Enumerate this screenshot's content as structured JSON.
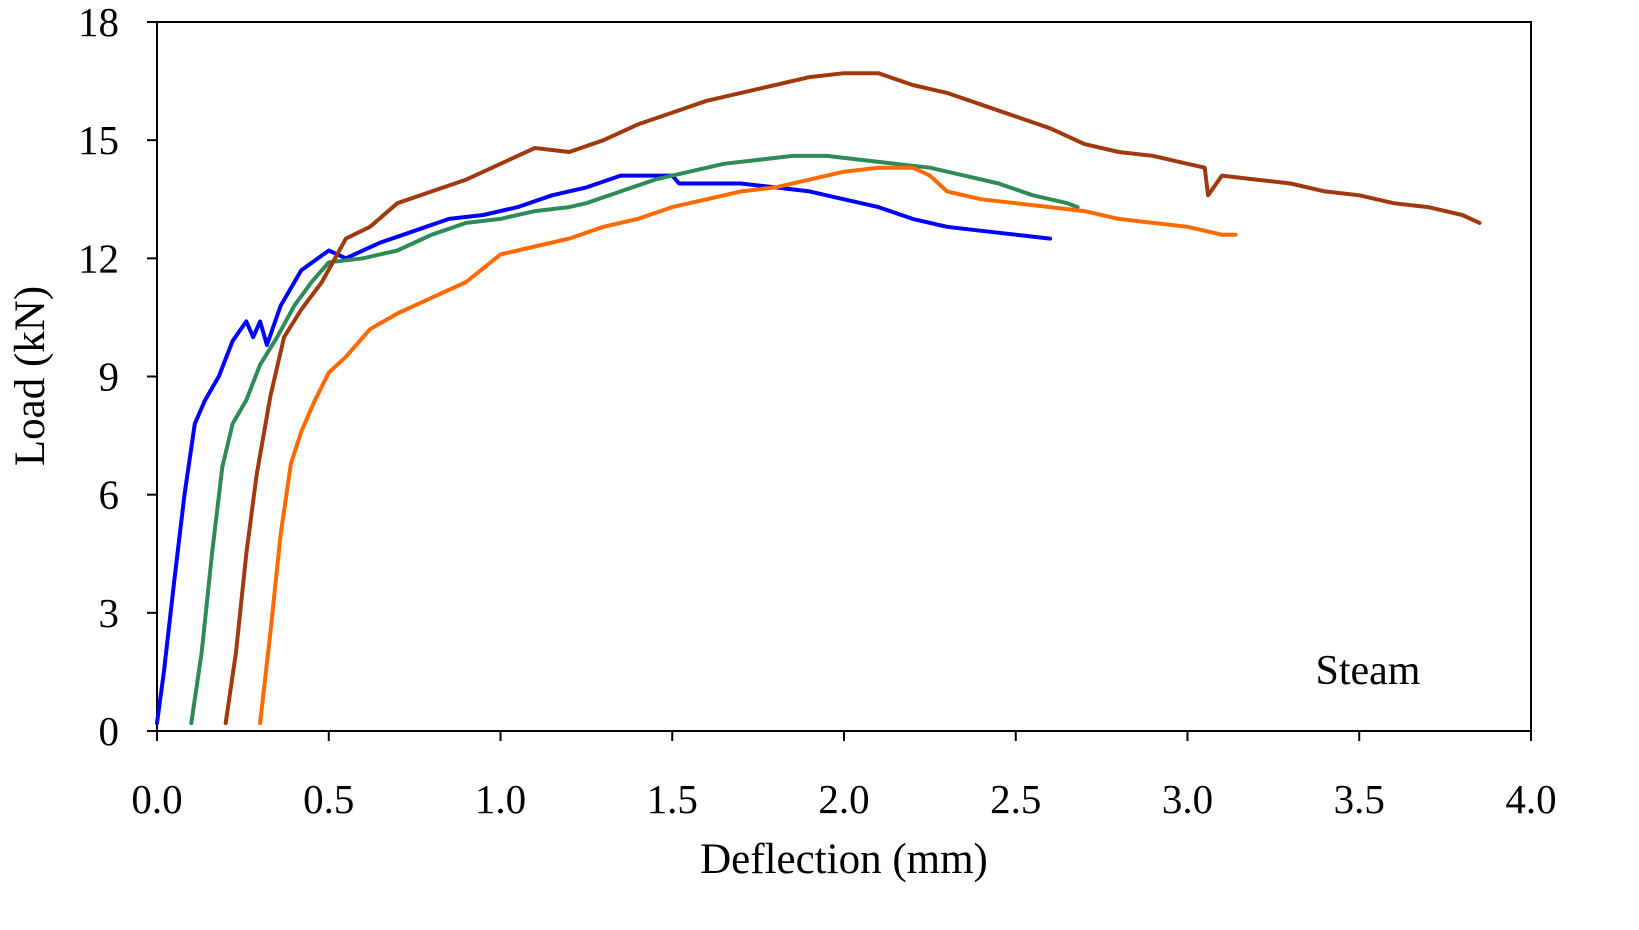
{
  "chart_data": {
    "type": "line",
    "title": "",
    "xlabel": "Deflection (mm)",
    "ylabel": "Load (kN)",
    "xlim": [
      0.0,
      4.0
    ],
    "ylim": [
      0,
      18
    ],
    "xticks": [
      "0.0",
      "0.5",
      "1.0",
      "1.5",
      "2.0",
      "2.5",
      "3.0",
      "3.5",
      "4.0"
    ],
    "yticks": [
      "0",
      "3",
      "6",
      "9",
      "12",
      "15",
      "18"
    ],
    "grid": false,
    "legend": "none",
    "annotation": "Steam",
    "series": [
      {
        "color": "#0000ff",
        "x": [
          0.0,
          0.02,
          0.05,
          0.08,
          0.11,
          0.14,
          0.18,
          0.22,
          0.26,
          0.28,
          0.3,
          0.32,
          0.36,
          0.42,
          0.5,
          0.55,
          0.65,
          0.75,
          0.85,
          0.95,
          1.05,
          1.15,
          1.25,
          1.35,
          1.45,
          1.5,
          1.52,
          1.6,
          1.7,
          1.8,
          1.9,
          2.0,
          2.1,
          2.2,
          2.3,
          2.4,
          2.5,
          2.6
        ],
        "y": [
          0.2,
          1.5,
          3.8,
          6.0,
          7.8,
          8.4,
          9.0,
          9.9,
          10.4,
          10.0,
          10.4,
          9.8,
          10.8,
          11.7,
          12.2,
          12.0,
          12.4,
          12.7,
          13.0,
          13.1,
          13.3,
          13.6,
          13.8,
          14.1,
          14.1,
          14.1,
          13.9,
          13.9,
          13.9,
          13.8,
          13.7,
          13.5,
          13.3,
          13.0,
          12.8,
          12.7,
          12.6,
          12.5
        ]
      },
      {
        "color": "#2e8b57",
        "x": [
          0.1,
          0.13,
          0.16,
          0.19,
          0.22,
          0.26,
          0.3,
          0.35,
          0.4,
          0.45,
          0.5,
          0.6,
          0.7,
          0.8,
          0.9,
          1.0,
          1.1,
          1.2,
          1.25,
          1.35,
          1.45,
          1.55,
          1.65,
          1.75,
          1.85,
          1.95,
          2.05,
          2.15,
          2.25,
          2.35,
          2.45,
          2.55,
          2.65,
          2.68
        ],
        "y": [
          0.2,
          2.0,
          4.5,
          6.7,
          7.8,
          8.4,
          9.3,
          10.0,
          10.8,
          11.4,
          11.9,
          12.0,
          12.2,
          12.6,
          12.9,
          13.0,
          13.2,
          13.3,
          13.4,
          13.7,
          14.0,
          14.2,
          14.4,
          14.5,
          14.6,
          14.6,
          14.5,
          14.4,
          14.3,
          14.1,
          13.9,
          13.6,
          13.4,
          13.3
        ]
      },
      {
        "color": "#a0390e",
        "x": [
          0.2,
          0.23,
          0.26,
          0.29,
          0.33,
          0.37,
          0.42,
          0.48,
          0.55,
          0.62,
          0.7,
          0.8,
          0.9,
          1.0,
          1.1,
          1.2,
          1.3,
          1.4,
          1.5,
          1.6,
          1.7,
          1.8,
          1.9,
          2.0,
          2.1,
          2.2,
          2.3,
          2.4,
          2.5,
          2.6,
          2.7,
          2.8,
          2.9,
          3.0,
          3.05,
          3.06,
          3.1,
          3.2,
          3.3,
          3.4,
          3.5,
          3.6,
          3.7,
          3.8,
          3.85
        ],
        "y": [
          0.2,
          2.0,
          4.5,
          6.5,
          8.5,
          10.0,
          10.7,
          11.4,
          12.5,
          12.8,
          13.4,
          13.7,
          14.0,
          14.4,
          14.8,
          14.7,
          15.0,
          15.4,
          15.7,
          16.0,
          16.2,
          16.4,
          16.6,
          16.7,
          16.7,
          16.4,
          16.2,
          15.9,
          15.6,
          15.3,
          14.9,
          14.7,
          14.6,
          14.4,
          14.3,
          13.6,
          14.1,
          14.0,
          13.9,
          13.7,
          13.6,
          13.4,
          13.3,
          13.1,
          12.9
        ]
      },
      {
        "color": "#ff6a00",
        "x": [
          0.3,
          0.33,
          0.36,
          0.39,
          0.42,
          0.46,
          0.5,
          0.55,
          0.62,
          0.7,
          0.8,
          0.9,
          1.0,
          1.1,
          1.2,
          1.3,
          1.4,
          1.5,
          1.6,
          1.7,
          1.8,
          1.9,
          2.0,
          2.1,
          2.2,
          2.25,
          2.3,
          2.4,
          2.5,
          2.6,
          2.7,
          2.8,
          2.9,
          3.0,
          3.1,
          3.14
        ],
        "y": [
          0.2,
          2.5,
          5.0,
          6.8,
          7.6,
          8.4,
          9.1,
          9.5,
          10.2,
          10.6,
          11.0,
          11.4,
          12.1,
          12.3,
          12.5,
          12.8,
          13.0,
          13.3,
          13.5,
          13.7,
          13.8,
          14.0,
          14.2,
          14.3,
          14.3,
          14.1,
          13.7,
          13.5,
          13.4,
          13.3,
          13.2,
          13.0,
          12.9,
          12.8,
          12.6,
          12.6
        ]
      }
    ]
  }
}
